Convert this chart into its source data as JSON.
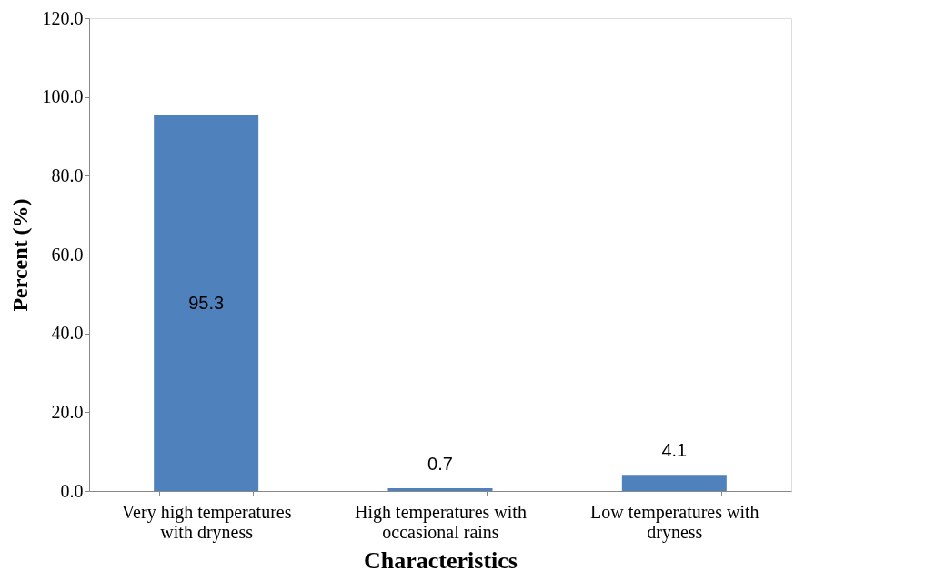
{
  "chart_data": {
    "type": "bar",
    "categories": [
      "Very high temperatures with dryness",
      "High temperatures with occasional rains",
      "Low temperatures with dryness"
    ],
    "values": [
      95.3,
      0.7,
      4.1
    ],
    "color": "#4f81bd",
    "xlabel": "Characteristics",
    "ylabel": "Percent (%)",
    "ylim": [
      0,
      120
    ],
    "yticks": [
      {
        "value": 0,
        "label": "0.0"
      },
      {
        "value": 20,
        "label": "20.0"
      },
      {
        "value": 40,
        "label": "40.0"
      },
      {
        "value": 60,
        "label": "60.0"
      },
      {
        "value": 80,
        "label": "80.0"
      },
      {
        "value": 100,
        "label": "100.0"
      },
      {
        "value": 120,
        "label": "120.0"
      }
    ],
    "grid": false,
    "data_labels": true
  }
}
